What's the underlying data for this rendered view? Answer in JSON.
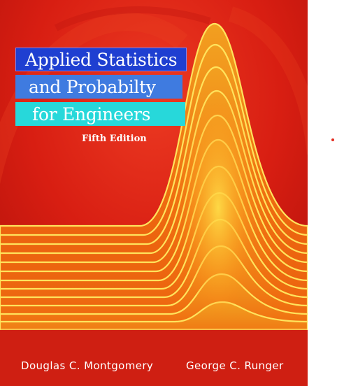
{
  "cover": {
    "title_line_1": "Applied Statistics",
    "title_line_2": "and Probabilty",
    "title_line_3": "for Engineers",
    "edition": "Fifth Edition",
    "author_1": "Douglas C. Montgomery",
    "author_2": "George C. Runger"
  },
  "colors": {
    "background": "#d81e12",
    "band_1": "#1f3fd1",
    "band_2": "#3f7be0",
    "band_3": "#27d8da",
    "curve_fill": "#f07a12",
    "curve_line": "#ffe35c",
    "dot": "#e32b1f"
  }
}
